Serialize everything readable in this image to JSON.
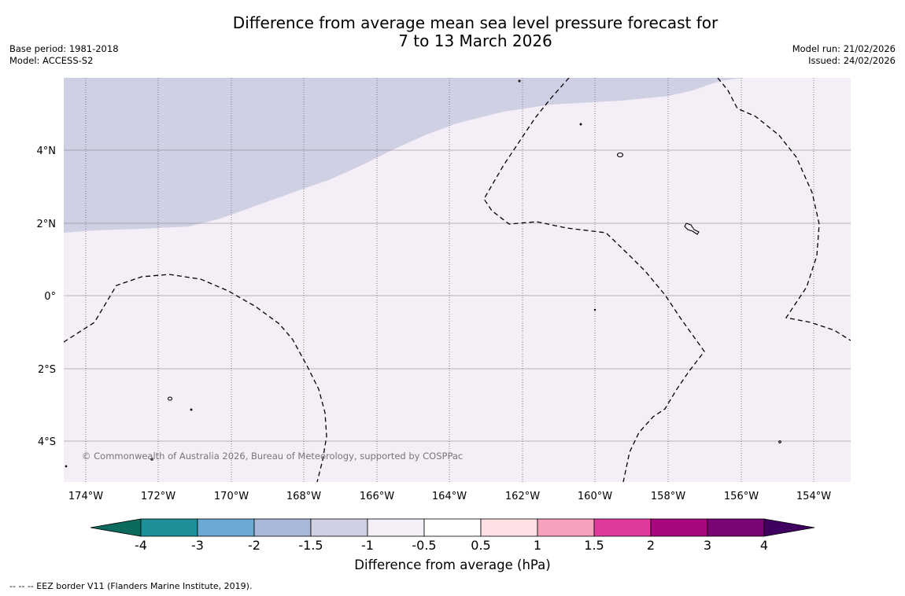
{
  "title_line1": "Difference from average mean sea level pressure forecast for",
  "title_line2": "7 to 13 March 2026",
  "base_period": "Base period: 1981-2018",
  "model": "Model: ACCESS-S2",
  "model_run": "Model run: 21/02/2026",
  "issued": "Issued: 24/02/2026",
  "copyright": "© Commonwealth of Australia 2026, Bureau of Meteorology, supported by COSPPac",
  "footnote": "--  --  -- EEZ border V11 (Flanders Marine Institute, 2019).",
  "colorbar_title": "Difference from average (hPa)",
  "lon_labels": [
    "174°W",
    "172°W",
    "170°W",
    "168°W",
    "166°W",
    "164°W",
    "162°W",
    "160°W",
    "158°W",
    "156°W",
    "154°W"
  ],
  "lat_labels": [
    "4°N",
    "2°N",
    "0°",
    "2°S",
    "4°S"
  ],
  "colorbar_ticks": [
    "-4",
    "-3",
    "-2",
    "-1.5",
    "-1",
    "-0.5",
    "0.5",
    "1",
    "1.5",
    "2",
    "3",
    "4"
  ],
  "colorbar_colors": [
    "#0d6b5e",
    "#1d8f98",
    "#6aaad2",
    "#a9b8d9",
    "#d0d0e5",
    "#f4eef6",
    "#ffffff",
    "#fde0e3",
    "#f7a1bd",
    "#e03a9e",
    "#a9077e",
    "#790474",
    "#3f005f"
  ],
  "map_colors": {
    "anomaly_minus_1_to_minus_1_5": "#d0d0e5",
    "anomaly_minus_0_5_to_minus_1": "#f4eef6"
  }
}
